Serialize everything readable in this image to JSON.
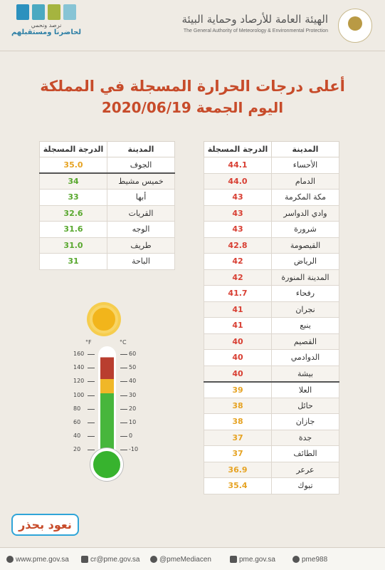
{
  "header": {
    "authority_ar": "الهيئة العامة للأرصاد وحماية البيئة",
    "authority_en": "The General Authority of Meteorology & Environmental Protection",
    "vision_line1": "نرصد ونحمي",
    "vision_line2": "لحاضرنا ومستقبلهم"
  },
  "title": {
    "line1": "أعلى درجات الحرارة المسجلة في المملكة",
    "line2": "اليوم الجمعة 2020/06/19"
  },
  "columns": {
    "city": "المدينة",
    "temp": "الدرجة المسجلة"
  },
  "right_table": [
    {
      "city": "الأحساء",
      "temp": "44.1",
      "color": "#d83f33"
    },
    {
      "city": "الدمام",
      "temp": "44.0",
      "color": "#d83f33"
    },
    {
      "city": "مكة المكرمة",
      "temp": "43",
      "color": "#d83f33"
    },
    {
      "city": "وادي الدواسر",
      "temp": "43",
      "color": "#d83f33"
    },
    {
      "city": "شرورة",
      "temp": "43",
      "color": "#d83f33"
    },
    {
      "city": "القيصومة",
      "temp": "42.8",
      "color": "#d83f33"
    },
    {
      "city": "الرياض",
      "temp": "42",
      "color": "#d83f33"
    },
    {
      "city": "المدينة المنورة",
      "temp": "42",
      "color": "#d83f33"
    },
    {
      "city": "رفحاء",
      "temp": "41.7",
      "color": "#d83f33"
    },
    {
      "city": "نجران",
      "temp": "41",
      "color": "#d83f33"
    },
    {
      "city": "ينبع",
      "temp": "41",
      "color": "#d83f33"
    },
    {
      "city": "القصيم",
      "temp": "40",
      "color": "#d83f33"
    },
    {
      "city": "الدوادمي",
      "temp": "40",
      "color": "#d83f33"
    },
    {
      "city": "بيشة",
      "temp": "40",
      "color": "#d83f33"
    },
    {
      "city": "العلا",
      "temp": "39",
      "color": "#e6a323"
    },
    {
      "city": "حائل",
      "temp": "38",
      "color": "#e6a323"
    },
    {
      "city": "جازان",
      "temp": "38",
      "color": "#e6a323"
    },
    {
      "city": "جدة",
      "temp": "37",
      "color": "#e6a323"
    },
    {
      "city": "الطائف",
      "temp": "37",
      "color": "#e6a323"
    },
    {
      "city": "عرعر",
      "temp": "36.9",
      "color": "#e6a323"
    },
    {
      "city": "تبوك",
      "temp": "35.4",
      "color": "#e6a323"
    }
  ],
  "left_table": [
    {
      "city": "الجوف",
      "temp": "35.0",
      "color": "#e6a323"
    },
    {
      "city": "خميس مشيط",
      "temp": "34",
      "color": "#59a82f"
    },
    {
      "city": "أبها",
      "temp": "33",
      "color": "#59a82f"
    },
    {
      "city": "القريات",
      "temp": "32.6",
      "color": "#59a82f"
    },
    {
      "city": "الوجه",
      "temp": "31.6",
      "color": "#59a82f"
    },
    {
      "city": "طريف",
      "temp": "31.0",
      "color": "#59a82f"
    },
    {
      "city": "الباحة",
      "temp": "31",
      "color": "#59a82f"
    }
  ],
  "thermometer": {
    "f_label": "°F",
    "c_label": "°C",
    "f_ticks": [
      "160",
      "140",
      "120",
      "100",
      "80",
      "60",
      "40",
      "20"
    ],
    "c_ticks": [
      "60",
      "50",
      "40",
      "30",
      "20",
      "10",
      "0",
      "-10"
    ]
  },
  "campaign": {
    "text": "نعود بحذر"
  },
  "footer": {
    "website": "www.pme.gov.sa",
    "email": "cr@pme.gov.sa",
    "twitter": "@pmeMediacen",
    "youtube": "pme.gov.sa",
    "snapchat": "pme988"
  }
}
